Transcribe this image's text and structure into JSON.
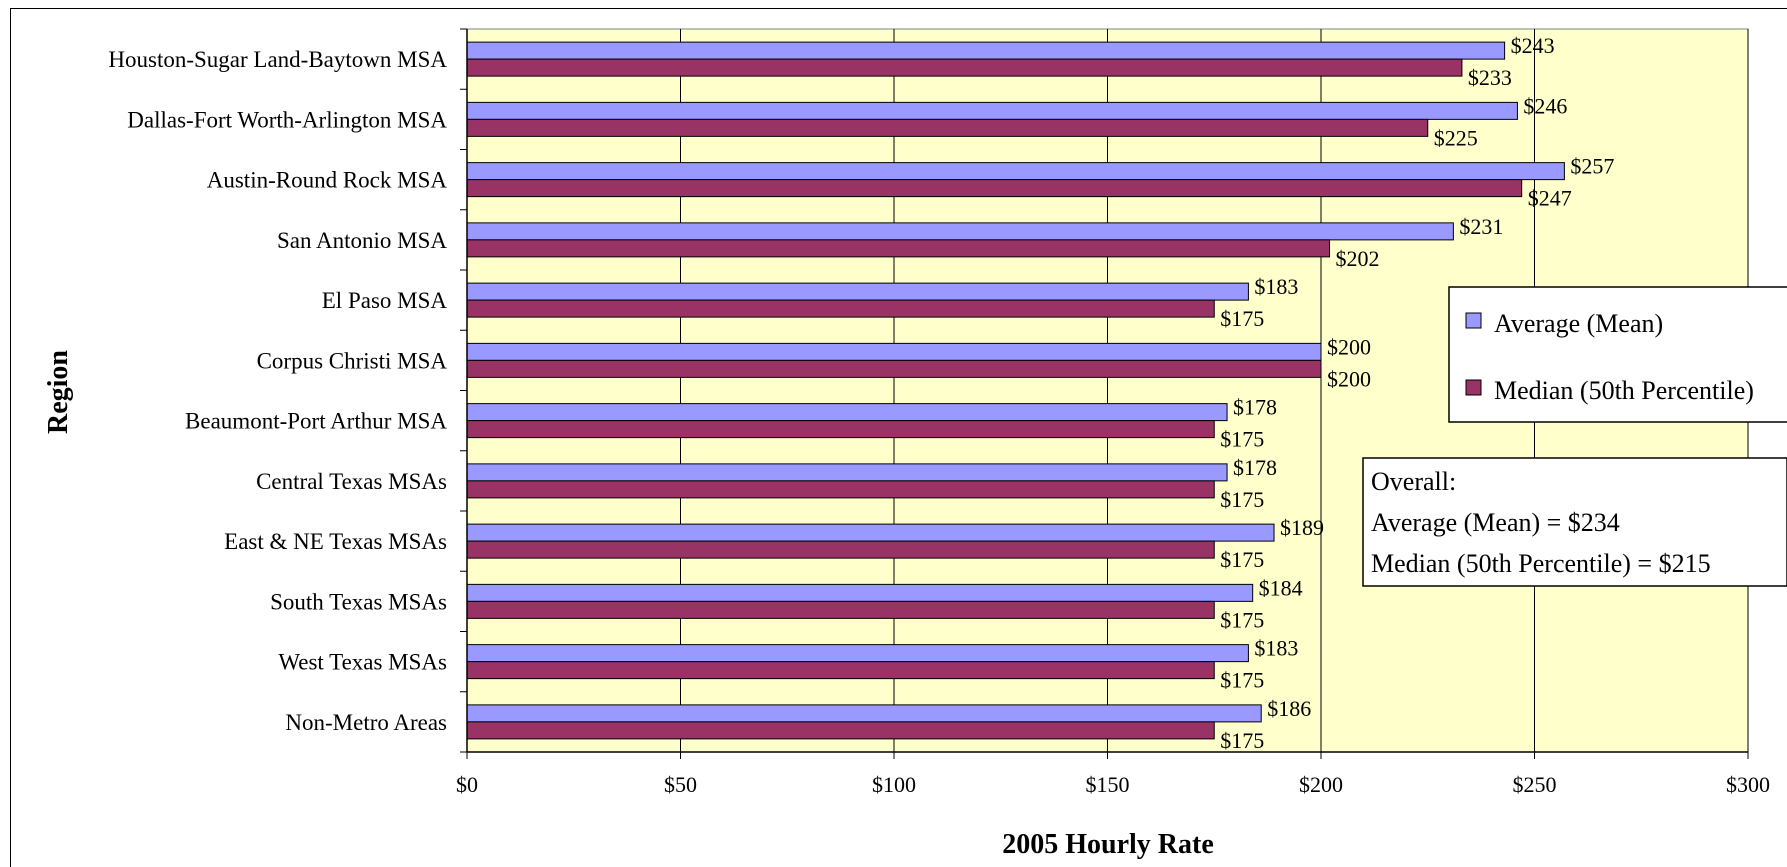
{
  "chart_data": {
    "type": "bar",
    "orientation": "horizontal",
    "title": "",
    "xlabel": "2005 Hourly Rate",
    "ylabel": "Region",
    "xlim": [
      0,
      300
    ],
    "x_ticks": [
      "$0",
      "$50",
      "$100",
      "$150",
      "$200",
      "$250",
      "$300"
    ],
    "x_tick_values": [
      0,
      50,
      100,
      150,
      200,
      250,
      300
    ],
    "grid": "vertical",
    "categories": [
      "Houston-Sugar Land-Baytown MSA",
      "Dallas-Fort Worth-Arlington MSA",
      "Austin-Round Rock MSA",
      "San Antonio MSA",
      "El Paso MSA",
      "Corpus Christi MSA",
      "Beaumont-Port Arthur MSA",
      "Central Texas MSAs",
      "East & NE Texas MSAs",
      "South Texas MSAs",
      "West Texas MSAs",
      "Non-Metro Areas"
    ],
    "series": [
      {
        "name": "Average (Mean)",
        "color": "#9999ff",
        "values": [
          243,
          246,
          257,
          231,
          183,
          200,
          178,
          178,
          189,
          184,
          183,
          186
        ],
        "labels": [
          "$243",
          "$246",
          "$257",
          "$231",
          "$183",
          "$200",
          "$178",
          "$178",
          "$189",
          "$184",
          "$183",
          "$186"
        ]
      },
      {
        "name": "Median (50th Percentile)",
        "color": "#993366",
        "values": [
          233,
          225,
          247,
          202,
          175,
          200,
          175,
          175,
          175,
          175,
          175,
          175
        ],
        "labels": [
          "$233",
          "$225",
          "$247",
          "$202",
          "$175",
          "$200",
          "$175",
          "$175",
          "$175",
          "$175",
          "$175",
          "$175"
        ]
      }
    ],
    "legend_position": "right",
    "plot_background": "#ffffcc",
    "annotation": {
      "lines": [
        "Overall:",
        "Average (Mean) = $234",
        "Median (50th Percentile) = $215"
      ]
    }
  }
}
